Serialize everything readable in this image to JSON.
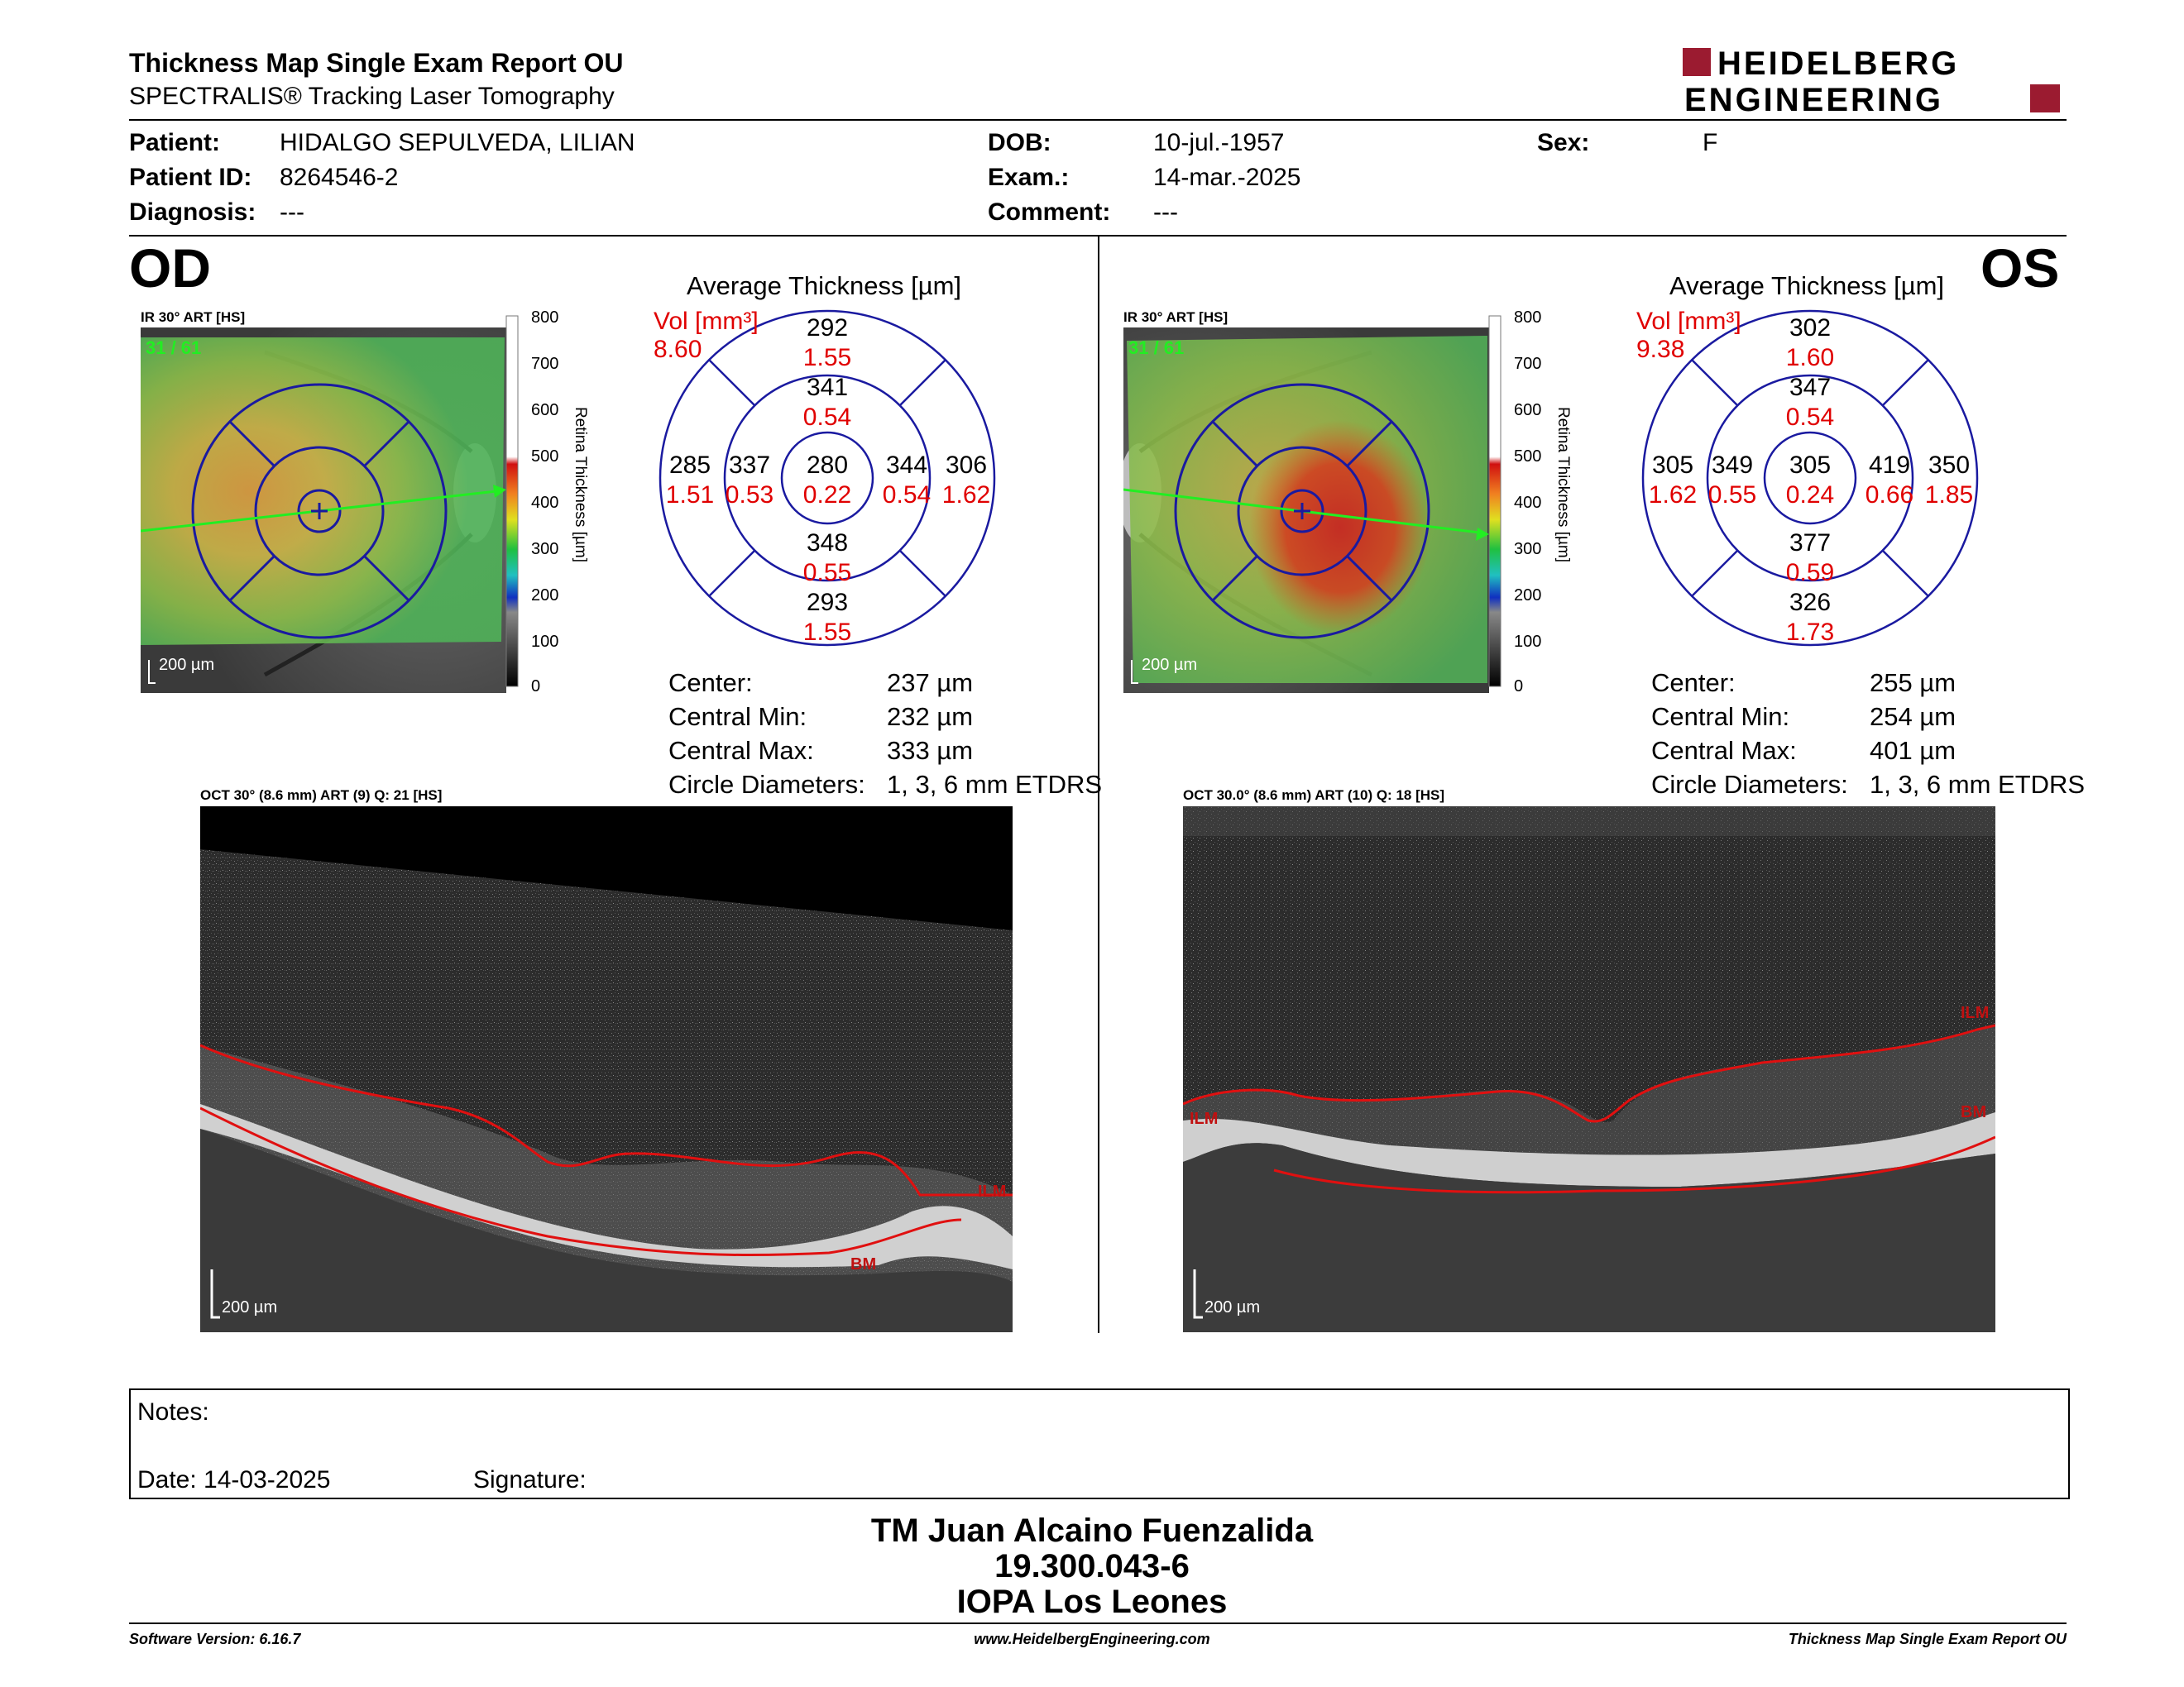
{
  "header": {
    "title": "Thickness Map Single Exam Report OU",
    "subtitle": "SPECTRALIS® Tracking Laser Tomography",
    "logo_line1": "HEIDELBERG",
    "logo_line2": "ENGINEERING"
  },
  "patient": {
    "patient_label": "Patient:",
    "patient_value": "HIDALGO SEPULVEDA, LILIAN",
    "id_label": "Patient ID:",
    "id_value": "8264546-2",
    "diagnosis_label": "Diagnosis:",
    "diagnosis_value": "---",
    "dob_label": "DOB:",
    "dob_value": "10-jul.-1957",
    "exam_label": "Exam.:",
    "exam_value": "14-mar.-2025",
    "comment_label": "Comment:",
    "comment_value": "---",
    "sex_label": "Sex:",
    "sex_value": "F"
  },
  "od": {
    "eye": "OD",
    "ir_label": "IR 30° ART [HS]",
    "frame": "31 / 61",
    "scale": "200 µm",
    "colorbar_ticks": [
      "800",
      "700",
      "600",
      "500",
      "400",
      "300",
      "200",
      "100",
      "0"
    ],
    "colorbar_title": "Retina Thickness [µm]",
    "avg_title": "Average Thickness [µm]",
    "vol_label": "Vol [mm³]",
    "vol_total": "8.60",
    "sectors": {
      "outer_sup": [
        "292",
        "1.55"
      ],
      "inner_sup": [
        "341",
        "0.54"
      ],
      "outer_temp": [
        "285",
        "1.51"
      ],
      "inner_temp": [
        "337",
        "0.53"
      ],
      "center": [
        "280",
        "0.22"
      ],
      "inner_nasal": [
        "344",
        "0.54"
      ],
      "outer_nasal": [
        "306",
        "1.62"
      ],
      "inner_inf": [
        "348",
        "0.55"
      ],
      "outer_inf": [
        "293",
        "1.55"
      ]
    },
    "stats": [
      {
        "label": "Center:",
        "value": "237 µm"
      },
      {
        "label": "Central Min:",
        "value": "232 µm"
      },
      {
        "label": "Central Max:",
        "value": "333 µm"
      },
      {
        "label": "Circle Diameters:",
        "value": "1, 3, 6 mm ETDRS"
      }
    ],
    "oct_label": "OCT 30° (8.6 mm) ART (9) Q: 21 [HS]",
    "oct_scale": "200 µm",
    "ilm": "ILM",
    "bm": "BM"
  },
  "os": {
    "eye": "OS",
    "ir_label": "IR 30° ART [HS]",
    "frame": "31 / 61",
    "scale": "200 µm",
    "colorbar_ticks": [
      "800",
      "700",
      "600",
      "500",
      "400",
      "300",
      "200",
      "100",
      "0"
    ],
    "colorbar_title": "Retina Thickness [µm]",
    "avg_title": "Average Thickness [µm]",
    "vol_label": "Vol [mm³]",
    "vol_total": "9.38",
    "sectors": {
      "outer_sup": [
        "302",
        "1.60"
      ],
      "inner_sup": [
        "347",
        "0.54"
      ],
      "outer_temp": [
        "305",
        "1.62"
      ],
      "inner_temp": [
        "349",
        "0.55"
      ],
      "center": [
        "305",
        "0.24"
      ],
      "inner_nasal": [
        "419",
        "0.66"
      ],
      "outer_nasal": [
        "350",
        "1.85"
      ],
      "inner_inf": [
        "377",
        "0.59"
      ],
      "outer_inf": [
        "326",
        "1.73"
      ]
    },
    "stats": [
      {
        "label": "Center:",
        "value": "255 µm"
      },
      {
        "label": "Central Min:",
        "value": "254 µm"
      },
      {
        "label": "Central Max:",
        "value": "401 µm"
      },
      {
        "label": "Circle Diameters:",
        "value": "1, 3, 6 mm ETDRS"
      }
    ],
    "oct_label": "OCT 30.0° (8.6 mm) ART (10) Q: 18 [HS]",
    "oct_scale": "200 µm",
    "ilm": "ILM",
    "ilm_left": "ILM",
    "bm": "BM"
  },
  "notes": {
    "notes_label": "Notes:",
    "date_label": "Date: 14-03-2025",
    "signature_label": "Signature:"
  },
  "signoff": {
    "name": "TM Juan Alcaino Fuenzalida",
    "rut": "19.300.043-6",
    "institution": "IOPA Los Leones"
  },
  "footer": {
    "software": "Software Version: 6.16.7",
    "website": "www.HeidelbergEngineering.com",
    "report": "Thickness Map Single Exam Report OU"
  },
  "colors": {
    "accent_red": "#9b1b30",
    "vol_red": "#e00000",
    "circle_blue": "#1a1aa0"
  }
}
